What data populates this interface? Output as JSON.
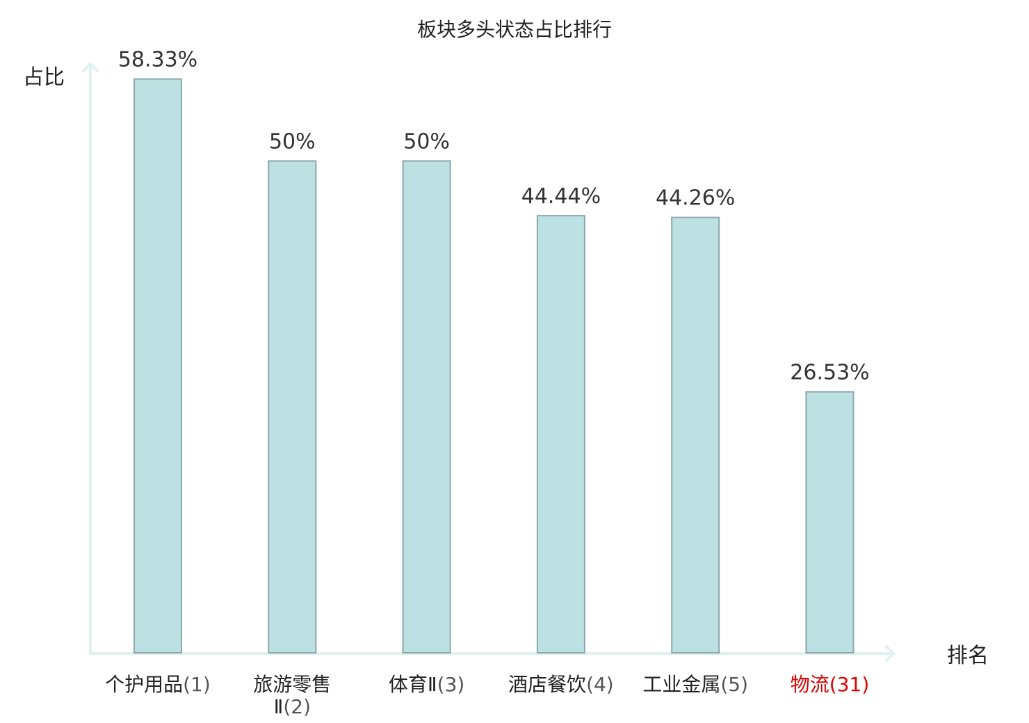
{
  "chart_data": {
    "type": "bar",
    "title": "板块多头状态占比排行",
    "ylabel": "占比",
    "xlabel": "排名",
    "ylim": [
      0,
      60
    ],
    "grid": false,
    "categories": [
      {
        "name": "个护用品",
        "rank": "(1)"
      },
      {
        "name": "旅游零售Ⅱ",
        "rank": "(2)"
      },
      {
        "name": "体育Ⅱ",
        "rank": "(3)"
      },
      {
        "name": "酒店餐饮",
        "rank": "(4)"
      },
      {
        "name": "工业金属",
        "rank": "(5)"
      },
      {
        "name": "物流",
        "rank": "(31)"
      }
    ],
    "values": [
      58.33,
      50,
      50,
      44.44,
      44.26,
      26.53
    ],
    "value_labels": [
      "58.33%",
      "50%",
      "50%",
      "44.44%",
      "44.26%",
      "26.53%"
    ],
    "highlight_index": 5,
    "colors": {
      "bar_fill": "#bde0e3",
      "bar_stroke": "#8aa7ab",
      "axis": "#e0f2ef",
      "text": "#222222",
      "rank_text": "#555555",
      "highlight": "#e00000"
    }
  }
}
